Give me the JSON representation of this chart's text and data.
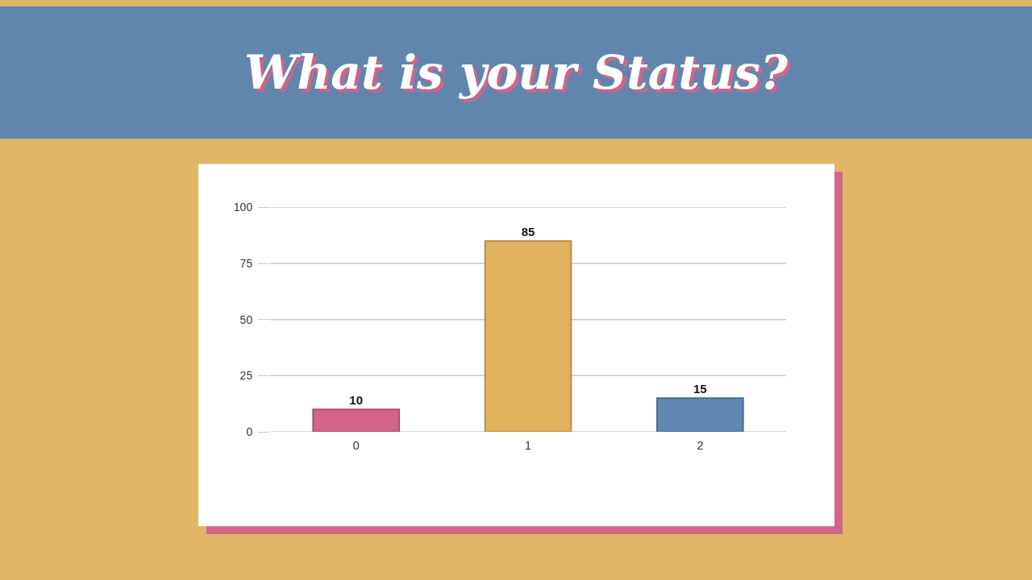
{
  "chart_data": {
    "type": "bar",
    "title": "What is your Status?",
    "categories": [
      "0",
      "1",
      "2"
    ],
    "values": [
      10,
      85,
      15
    ],
    "colors": [
      "#d4648a",
      "#e0b25e",
      "#6088b2"
    ],
    "ylim": [
      0,
      100
    ],
    "yticks": [
      0,
      25,
      50,
      75,
      100
    ],
    "grid": "y",
    "data_labels": true
  }
}
